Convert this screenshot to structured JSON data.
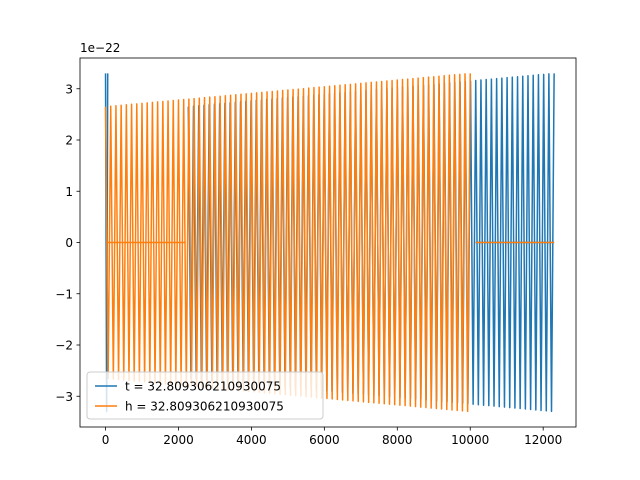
{
  "chart_data": {
    "type": "line",
    "title": "",
    "xlabel": "",
    "ylabel": "",
    "y_offset_text": "1e−22",
    "xlim": [
      -700,
      12900
    ],
    "ylim": [
      -3.6,
      3.6
    ],
    "x_ticks": [
      0,
      2000,
      4000,
      6000,
      8000,
      10000,
      12000
    ],
    "x_tick_labels": [
      "0",
      "2000",
      "4000",
      "6000",
      "8000",
      "10000",
      "12000"
    ],
    "y_ticks": [
      -3,
      -2,
      -1,
      0,
      1,
      2,
      3
    ],
    "y_tick_labels": [
      "−3",
      "−2",
      "−1",
      "0",
      "1",
      "2",
      "3"
    ],
    "grid": false,
    "legend_position": "lower-left",
    "series": [
      {
        "name": "t = 32.809306210930075",
        "color": "#1f77b4",
        "segments": [
          {
            "type": "oscillation",
            "x_start": 0,
            "x_end": 60,
            "amp_start": 3.3,
            "amp_end": 3.3,
            "cycles": 1
          },
          {
            "type": "oscillation",
            "x_start": 2270,
            "x_end": 12300,
            "amp_start": 2.65,
            "amp_end": 3.3,
            "cycles": 70
          },
          {
            "type": "flat",
            "x_start": 10150,
            "x_end": 12300,
            "value": 0
          }
        ]
      },
      {
        "name": "h = 32.809306210930075",
        "color": "#ff7f0e",
        "segments": [
          {
            "type": "oscillation",
            "x_start": 0,
            "x_end": 10000,
            "amp_start": 2.65,
            "amp_end": 3.3,
            "cycles": 70
          },
          {
            "type": "flat",
            "x_start": 60,
            "x_end": 2200,
            "value": 0
          },
          {
            "type": "flat",
            "x_start": 10150,
            "x_end": 12300,
            "value": 0
          }
        ]
      }
    ]
  }
}
